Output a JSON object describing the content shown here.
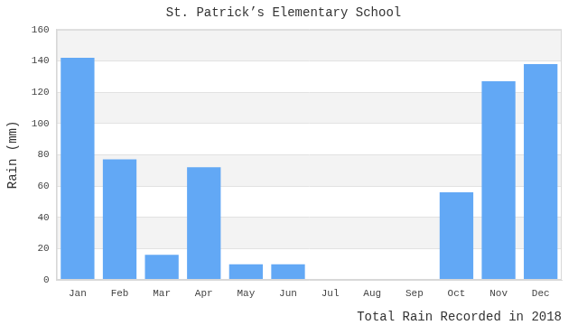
{
  "chart_data": {
    "type": "bar",
    "title": "St. Patrick’s Elementary School",
    "y_label": "Rain (mm)",
    "x_label": "Total Rain Recorded in 2018",
    "categories": [
      "Jan",
      "Feb",
      "Mar",
      "Apr",
      "May",
      "Jun",
      "Jul",
      "Aug",
      "Sep",
      "Oct",
      "Nov",
      "Dec"
    ],
    "values": [
      142,
      77,
      16,
      72,
      10,
      10,
      0,
      0,
      0,
      56,
      127,
      138
    ],
    "color": "#62a8f5",
    "ylim": [
      0,
      160
    ],
    "yticks": [
      0,
      20,
      40,
      60,
      80,
      100,
      120,
      140,
      160
    ],
    "grid": true
  }
}
